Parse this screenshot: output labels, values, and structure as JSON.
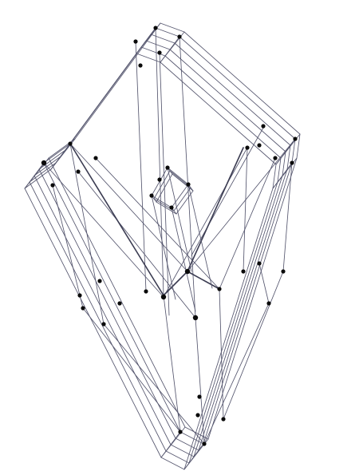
{
  "diagram": {
    "type": "wireframe-polytope-projection",
    "edge_color": "#55566e",
    "vertex_color": "#0a0a0a",
    "background": "#ffffff"
  }
}
